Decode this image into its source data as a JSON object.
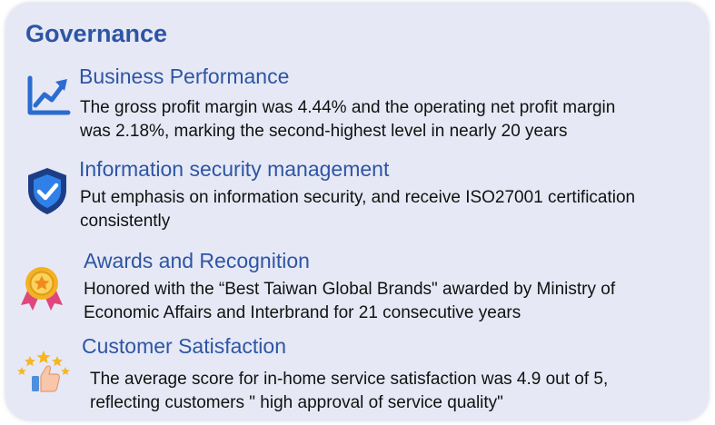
{
  "card": {
    "title": "Governance",
    "items": [
      {
        "icon": "chart-up-icon",
        "heading": "Business Performance",
        "lines": [
          "The gross profit margin was 4.44% and the operating net profit margin",
          "was 2.18%, marking the second-highest level in nearly 20 years"
        ]
      },
      {
        "icon": "shield-check-icon",
        "heading": "Information security management",
        "lines": [
          "Put emphasis on information security, and receive ISO27001 certification",
          "consistently"
        ]
      },
      {
        "icon": "award-medal-icon",
        "heading": "Awards and Recognition",
        "lines": [
          "Honored with the “Best Taiwan Global Brands\" awarded by Ministry of",
          "Economic Affairs and Interbrand for 21 consecutive years"
        ]
      },
      {
        "icon": "stars-thumbs-up-icon",
        "heading": "Customer Satisfaction",
        "lines": [
          "The average score for in-home service satisfaction was 4.9 out of 5,",
          "reflecting customers \" high approval of service quality\""
        ]
      }
    ]
  },
  "colors": {
    "card_background": "#e6e9f5",
    "heading_blue": "#2e55a4",
    "body_text": "#111111",
    "icon_blue": "#2b6cd0",
    "shield_dark": "#1c3e86",
    "medal_gold": "#f3b225",
    "ribbon_pink": "#e0467c",
    "star_gold": "#f6b625",
    "thumb_blue": "#4d8fdc"
  }
}
